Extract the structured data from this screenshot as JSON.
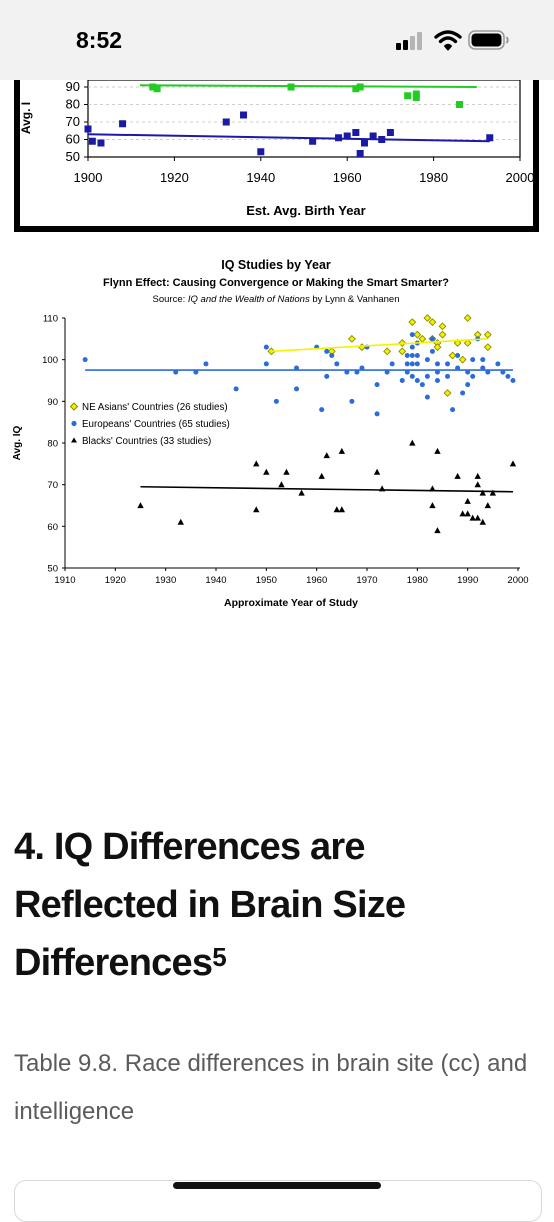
{
  "status_bar": {
    "time": "8:52",
    "icons": [
      "cellular-signal-icon",
      "wifi-icon",
      "battery-icon"
    ]
  },
  "figure1": {
    "y_label": "Avg. I",
    "x_label": "Est. Avg. Birth Year",
    "colors": {
      "green": "#22cc22",
      "blue": "#1a1aa6",
      "frame": "#000000"
    }
  },
  "figure2": {
    "colors": {
      "yellow": "#f2f200",
      "yellow_edge": "#8a8a00",
      "blue": "#2b6bdb",
      "black": "#000000"
    }
  },
  "chart_data": [
    {
      "type": "scatter",
      "title": "",
      "xlabel": "Est. Avg. Birth Year",
      "ylabel": "Avg. I",
      "xlim": [
        1900,
        2000
      ],
      "ylim": [
        50,
        90
      ],
      "x_ticks": [
        "1900",
        "1920",
        "1940",
        "1960",
        "1980",
        "2000"
      ],
      "y_ticks": [
        "50",
        "60",
        "70",
        "80",
        "90"
      ],
      "grid": true,
      "series": [
        {
          "color": "#22cc22",
          "points": [
            [
              1915,
              90
            ],
            [
              1916,
              89
            ],
            [
              1947,
              90
            ],
            [
              1962,
              89
            ],
            [
              1963,
              90
            ],
            [
              1974,
              85
            ],
            [
              1976,
              86
            ],
            [
              1976,
              84
            ],
            [
              1986,
              80
            ]
          ],
          "trend": [
            [
              1912,
              91
            ],
            [
              1990,
              90
            ]
          ]
        },
        {
          "color": "#1a1aa6",
          "points": [
            [
              1900,
              66
            ],
            [
              1901,
              59
            ],
            [
              1903,
              58
            ],
            [
              1908,
              69
            ],
            [
              1932,
              70
            ],
            [
              1936,
              74
            ],
            [
              1940,
              53
            ],
            [
              1952,
              59
            ],
            [
              1958,
              61
            ],
            [
              1960,
              62
            ],
            [
              1962,
              64
            ],
            [
              1963,
              52
            ],
            [
              1964,
              58
            ],
            [
              1966,
              62
            ],
            [
              1968,
              60
            ],
            [
              1970,
              64
            ],
            [
              1993,
              61
            ]
          ],
          "trend": [
            [
              1900,
              63
            ],
            [
              1993,
              59
            ]
          ]
        }
      ]
    },
    {
      "type": "scatter",
      "title": "IQ Studies by Year",
      "subtitle": "Flynn Effect: Causing Convergence or Making the Smart Smarter?",
      "source_prefix": "Source: ",
      "source_italic": "IQ and the Wealth of Nations",
      "source_suffix": " by Lynn & Vanhanen",
      "xlabel": "Approximate Year of Study",
      "ylabel": "Avg. IQ",
      "xlim": [
        1910,
        2000
      ],
      "ylim": [
        50,
        110
      ],
      "x_ticks": [
        "1910",
        "1920",
        "1930",
        "1940",
        "1950",
        "1960",
        "1970",
        "1980",
        "1990",
        "2000"
      ],
      "y_ticks": [
        "50",
        "60",
        "70",
        "80",
        "90",
        "100",
        "110"
      ],
      "legend_position": "left",
      "series": [
        {
          "name": "NE Asians' Countries (26 studies)",
          "marker": "diamond",
          "color": "#f2f200",
          "points": [
            [
              1951,
              102
            ],
            [
              1963,
              102
            ],
            [
              1967,
              105
            ],
            [
              1969,
              103
            ],
            [
              1974,
              102
            ],
            [
              1977,
              102
            ],
            [
              1977,
              104
            ],
            [
              1979,
              109
            ],
            [
              1980,
              106
            ],
            [
              1981,
              105
            ],
            [
              1982,
              110
            ],
            [
              1983,
              109
            ],
            [
              1983,
              105
            ],
            [
              1984,
              104
            ],
            [
              1984,
              103
            ],
            [
              1985,
              108
            ],
            [
              1985,
              106
            ],
            [
              1986,
              92
            ],
            [
              1987,
              101
            ],
            [
              1988,
              104
            ],
            [
              1989,
              100
            ],
            [
              1990,
              104
            ],
            [
              1990,
              110
            ],
            [
              1992,
              106
            ],
            [
              1994,
              103
            ],
            [
              1994,
              106
            ]
          ],
          "trend": [
            [
              1951,
              102
            ],
            [
              1994,
              105
            ]
          ]
        },
        {
          "name": "Europeans' Countries (65 studies)",
          "marker": "circle",
          "color": "#2b6bdb",
          "points": [
            [
              1914,
              100
            ],
            [
              1932,
              97
            ],
            [
              1936,
              97
            ],
            [
              1938,
              99
            ],
            [
              1944,
              93
            ],
            [
              1950,
              99
            ],
            [
              1950,
              103
            ],
            [
              1952,
              90
            ],
            [
              1956,
              98
            ],
            [
              1956,
              93
            ],
            [
              1960,
              103
            ],
            [
              1961,
              88
            ],
            [
              1962,
              102
            ],
            [
              1962,
              96
            ],
            [
              1964,
              99
            ],
            [
              1966,
              97
            ],
            [
              1967,
              90
            ],
            [
              1968,
              97
            ],
            [
              1969,
              98
            ],
            [
              1970,
              103
            ],
            [
              1972,
              94
            ],
            [
              1972,
              87
            ],
            [
              1974,
              97
            ],
            [
              1975,
              99
            ],
            [
              1977,
              95
            ],
            [
              1978,
              99
            ],
            [
              1978,
              101
            ],
            [
              1978,
              97
            ],
            [
              1979,
              106
            ],
            [
              1979,
              103
            ],
            [
              1979,
              101
            ],
            [
              1979,
              99
            ],
            [
              1979,
              96
            ],
            [
              1980,
              104
            ],
            [
              1980,
              101
            ],
            [
              1980,
              99
            ],
            [
              1980,
              95
            ],
            [
              1981,
              94
            ],
            [
              1982,
              100
            ],
            [
              1982,
              96
            ],
            [
              1982,
              91
            ],
            [
              1983,
              105
            ],
            [
              1983,
              102
            ],
            [
              1984,
              99
            ],
            [
              1984,
              97
            ],
            [
              1984,
              95
            ],
            [
              1986,
              99
            ],
            [
              1986,
              96
            ],
            [
              1987,
              88
            ],
            [
              1988,
              101
            ],
            [
              1988,
              98
            ],
            [
              1989,
              92
            ],
            [
              1990,
              94
            ],
            [
              1990,
              97
            ],
            [
              1991,
              96
            ],
            [
              1991,
              100
            ],
            [
              1992,
              105
            ],
            [
              1993,
              98
            ],
            [
              1993,
              100
            ],
            [
              1994,
              97
            ],
            [
              1996,
              99
            ],
            [
              1997,
              97
            ],
            [
              1998,
              96
            ],
            [
              1999,
              95
            ],
            [
              1963,
              101
            ]
          ],
          "trend": [
            [
              1914,
              97.5
            ],
            [
              1999,
              97.5
            ]
          ]
        },
        {
          "name": "Blacks' Countries (33 studies)",
          "marker": "triangle",
          "color": "#000000",
          "points": [
            [
              1925,
              65
            ],
            [
              1933,
              61
            ],
            [
              1948,
              64
            ],
            [
              1948,
              75
            ],
            [
              1950,
              73
            ],
            [
              1953,
              70
            ],
            [
              1954,
              73
            ],
            [
              1957,
              68
            ],
            [
              1961,
              72
            ],
            [
              1962,
              77
            ],
            [
              1964,
              64
            ],
            [
              1965,
              64
            ],
            [
              1965,
              78
            ],
            [
              1972,
              73
            ],
            [
              1973,
              69
            ],
            [
              1979,
              80
            ],
            [
              1983,
              69
            ],
            [
              1983,
              65
            ],
            [
              1984,
              59
            ],
            [
              1984,
              78
            ],
            [
              1988,
              72
            ],
            [
              1989,
              63
            ],
            [
              1990,
              63
            ],
            [
              1990,
              66
            ],
            [
              1991,
              62
            ],
            [
              1992,
              62
            ],
            [
              1992,
              72
            ],
            [
              1992,
              70
            ],
            [
              1993,
              61
            ],
            [
              1993,
              68
            ],
            [
              1994,
              65
            ],
            [
              1995,
              68
            ],
            [
              1999,
              75
            ]
          ],
          "trend": [
            [
              1925,
              69.5
            ],
            [
              1999,
              68.3
            ]
          ]
        }
      ]
    }
  ],
  "article": {
    "heading": "4. IQ Differences are Reflected in Brain Size Differences",
    "footnote": "5",
    "caption": "Table 9.8. Race differences in brain site (cc) and intelligence"
  }
}
